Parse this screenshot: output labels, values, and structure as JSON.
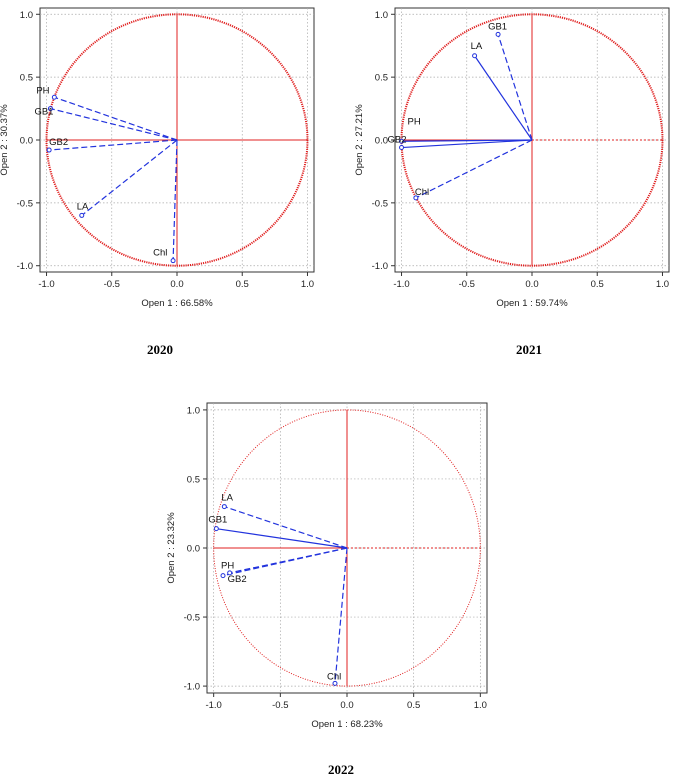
{
  "chart_data": [
    {
      "type": "scatter",
      "caption": "2020",
      "xlabel": "Open 1 : 66.58%",
      "ylabel": "Open 2 : 30.37%",
      "xlim": [
        -1.05,
        1.05
      ],
      "ylim": [
        -1.05,
        1.05
      ],
      "xticks": [
        "-1.0",
        "-0.5",
        "0.0",
        "0.5",
        "1.0"
      ],
      "yticks": [
        "1.0",
        "0.5",
        "0.0",
        "-0.5",
        "-1.0"
      ],
      "grid": true,
      "circle_style": "dense",
      "vectors": [
        {
          "label": "PH",
          "x": -0.94,
          "y": 0.34,
          "style": "dashed"
        },
        {
          "label": "GB1",
          "x": -0.97,
          "y": 0.25,
          "style": "dashed"
        },
        {
          "label": "GB2",
          "x": -0.98,
          "y": -0.08,
          "style": "dashed"
        },
        {
          "label": "LA",
          "x": -0.73,
          "y": -0.6,
          "style": "dashed"
        },
        {
          "label": "Chl",
          "x": -0.03,
          "y": -0.96,
          "style": "dashed"
        }
      ]
    },
    {
      "type": "scatter",
      "caption": "2021",
      "xlabel": "Open 1 : 59.74%",
      "ylabel": "Open 2 : 27.21%",
      "xlim": [
        -1.05,
        1.05
      ],
      "ylim": [
        -1.05,
        1.05
      ],
      "xticks": [
        "-1.0",
        "-0.5",
        "0.0",
        "0.5",
        "1.0"
      ],
      "yticks": [
        "1.0",
        "0.5",
        "0.0",
        "-0.5",
        "-1.0"
      ],
      "grid": true,
      "circle_style": "dense",
      "vectors": [
        {
          "label": "GB1",
          "x": -0.26,
          "y": 0.84,
          "style": "dashed"
        },
        {
          "label": "LA",
          "x": -0.44,
          "y": 0.67,
          "style": "solid"
        },
        {
          "label": "PH",
          "x": -1.0,
          "y": -0.01,
          "style": "solid"
        },
        {
          "label": "GB2",
          "x": -1.0,
          "y": -0.06,
          "style": "solid"
        },
        {
          "label": "Chl",
          "x": -0.89,
          "y": -0.46,
          "style": "dashed"
        }
      ]
    },
    {
      "type": "scatter",
      "caption": "2022",
      "xlabel": "Open 1 : 68.23%",
      "ylabel": "Open 2 : 23.32%",
      "xlim": [
        -1.05,
        1.05
      ],
      "ylim": [
        -1.05,
        1.05
      ],
      "xticks": [
        "-1.0",
        "-0.5",
        "0.0",
        "0.5",
        "1.0"
      ],
      "yticks": [
        "1.0",
        "0.5",
        "0.0",
        "-0.5",
        "-1.0"
      ],
      "grid": true,
      "circle_style": "light",
      "vectors": [
        {
          "label": "LA",
          "x": -0.92,
          "y": 0.3,
          "style": "dashed"
        },
        {
          "label": "GB1",
          "x": -0.98,
          "y": 0.14,
          "style": "solid"
        },
        {
          "label": "PH",
          "x": -0.93,
          "y": -0.2,
          "style": "dashed"
        },
        {
          "label": "GB2",
          "x": -0.88,
          "y": -0.18,
          "style": "dashed"
        },
        {
          "label": "Chl",
          "x": -0.09,
          "y": -0.98,
          "style": "dashed"
        }
      ]
    }
  ]
}
